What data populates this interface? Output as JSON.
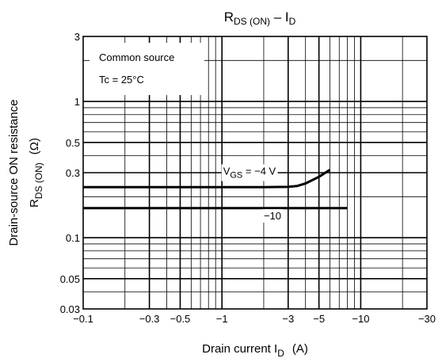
{
  "chart_data": {
    "type": "line",
    "title": {
      "main": "R",
      "sub": "DS (ON)",
      "sep": " – I",
      "sub2": "D"
    },
    "xlabel": {
      "main": "Drain current   I",
      "sub": "D",
      "unit": "(A)"
    },
    "ylabel": {
      "line1": "Drain-source ON resistance",
      "line2_main": "R",
      "line2_sub": "DS (ON)",
      "line2_unit": "(Ω)"
    },
    "x_scale": "log",
    "y_scale": "log",
    "xlim": [
      -0.1,
      -30
    ],
    "ylim": [
      0.03,
      3
    ],
    "x_tick_labels": [
      {
        "v": -0.1,
        "label": "−0.1"
      },
      {
        "v": -0.3,
        "label": "−0.3"
      },
      {
        "v": -0.5,
        "label": "−0.5"
      },
      {
        "v": -1,
        "label": "−1"
      },
      {
        "v": -3,
        "label": "−3"
      },
      {
        "v": -5,
        "label": "−5"
      },
      {
        "v": -10,
        "label": "−10"
      },
      {
        "v": -30,
        "label": "−30"
      }
    ],
    "y_tick_labels": [
      {
        "v": 3,
        "label": "3"
      },
      {
        "v": 1,
        "label": "1"
      },
      {
        "v": 0.5,
        "label": "0.5"
      },
      {
        "v": 0.3,
        "label": "0.3"
      },
      {
        "v": 0.1,
        "label": "0.1"
      },
      {
        "v": 0.05,
        "label": "0.05"
      },
      {
        "v": 0.03,
        "label": "0.03"
      }
    ],
    "grid": true,
    "annotations": {
      "box_line1": "Common source",
      "box_line2": "Tc = 25°C"
    },
    "series": [
      {
        "label_main": "V",
        "label_sub": "GS",
        "label_rest": " = −4 V",
        "label_at": {
          "x": -1.02,
          "y": 0.29
        },
        "x": [
          -0.1,
          -0.3,
          -1,
          -2,
          -3,
          -3.5,
          -4,
          -5,
          -6
        ],
        "y": [
          0.235,
          0.235,
          0.235,
          0.235,
          0.236,
          0.24,
          0.25,
          0.28,
          0.315
        ]
      },
      {
        "label_main": "−10",
        "label_sub": "",
        "label_rest": "",
        "label_at": {
          "x": -2.0,
          "y": 0.136
        },
        "x": [
          -0.1,
          -1,
          -8
        ],
        "y": [
          0.165,
          0.165,
          0.165
        ]
      }
    ]
  }
}
